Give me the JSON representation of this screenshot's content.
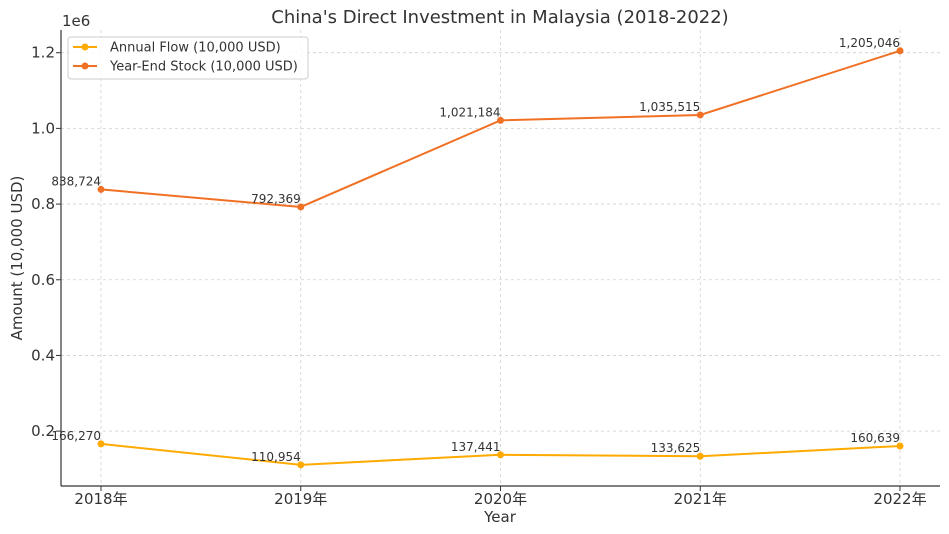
{
  "chart_data": {
    "type": "line",
    "title": "China's Direct Investment in Malaysia (2018-2022)",
    "xlabel": "Year",
    "ylabel": "Amount (10,000 USD)",
    "y_offset_label": "1e6",
    "categories": [
      "2018年",
      "2019年",
      "2020年",
      "2021年",
      "2022年"
    ],
    "y_ticks": [
      0.2,
      0.4,
      0.6,
      0.8,
      1.0,
      1.2
    ],
    "y_tick_labels": [
      "0.2",
      "0.4",
      "0.6",
      "0.8",
      "1.0",
      "1.2"
    ],
    "y_tick_scale": 1000000,
    "ylim": [
      55000,
      1260000
    ],
    "grid": true,
    "legend_position": "top-left",
    "series": [
      {
        "name": "Annual Flow (10,000 USD)",
        "color": "#FFAA00",
        "values": [
          166270,
          110954,
          137441,
          133625,
          160639
        ],
        "labels": [
          "166,270",
          "110,954",
          "137,441",
          "133,625",
          "160,639"
        ]
      },
      {
        "name": "Year-End Stock (10,000 USD)",
        "color": "#F07024",
        "values": [
          838724,
          792369,
          1021184,
          1035515,
          1205046
        ],
        "labels": [
          "838,724",
          "792,369",
          "1,021,184",
          "1,035,515",
          "1,205,046"
        ]
      }
    ]
  }
}
